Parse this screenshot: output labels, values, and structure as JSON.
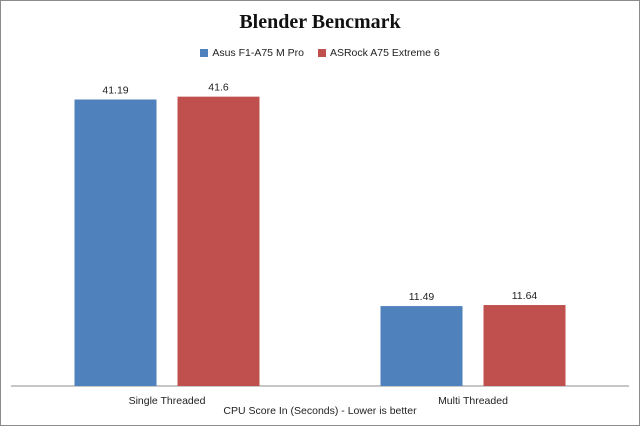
{
  "chart_data": {
    "type": "bar",
    "title": "Blender Bencmark",
    "xlabel": "CPU Score In (Seconds)  - Lower is better",
    "ylabel": "",
    "categories": [
      "Single Threaded",
      "Multi Threaded"
    ],
    "series": [
      {
        "name": "Asus F1-A75 M Pro",
        "color": "#4f81bd",
        "values": [
          41.19,
          11.49
        ]
      },
      {
        "name": "ASRock A75 Extreme 6",
        "color": "#c0504d",
        "values": [
          41.6,
          11.64
        ]
      }
    ],
    "ylim": [
      0,
      45
    ],
    "grid": false,
    "legend_position": "top",
    "data_labels": true
  }
}
